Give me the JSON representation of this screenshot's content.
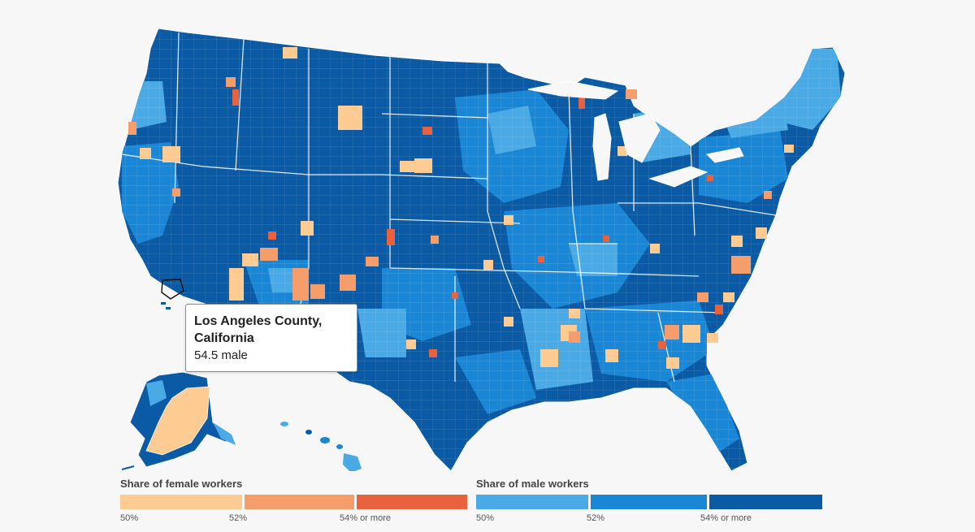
{
  "tooltip": {
    "county": "Los Angeles County,",
    "state": "California",
    "value": "54.5 male"
  },
  "legend_female": {
    "title": "Share of female workers",
    "colors": [
      "#fecb93",
      "#f59e6b",
      "#f4935e",
      "#e8623f"
    ],
    "ticks": [
      "50%",
      "52%",
      "54% or more"
    ]
  },
  "legend_male": {
    "title": "Share of male workers",
    "colors": [
      "#4aaae6",
      "#1a87d6",
      "#1176c8",
      "#0a5aa5"
    ],
    "ticks": [
      "50%",
      "52%",
      "54% or more"
    ]
  },
  "map_colors": {
    "male_dark": "#0a5aa5",
    "male_mid": "#1a87d6",
    "male_light": "#4aaae6",
    "female_light": "#fecb93",
    "female_mid": "#f59e6b",
    "female_dark": "#e8623f",
    "border": "#ffffff"
  }
}
